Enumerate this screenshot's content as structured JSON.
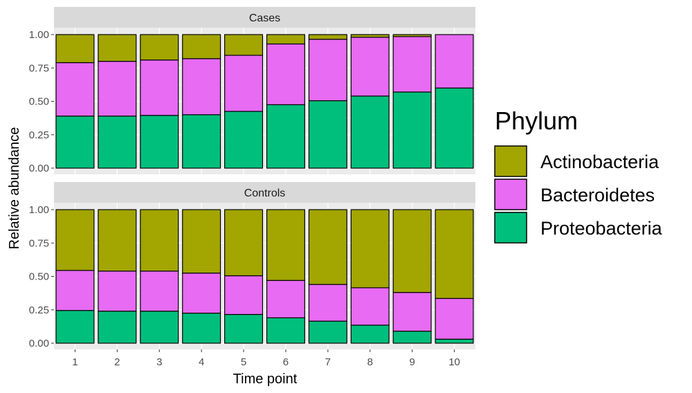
{
  "chart_data": {
    "type": "bar",
    "stacked": true,
    "xlabel": "Time point",
    "ylabel": "Relative abundance",
    "ylim": [
      0,
      1
    ],
    "y_ticks": [
      "0.00",
      "0.25",
      "0.50",
      "0.75",
      "1.00"
    ],
    "y_tick_values": [
      0,
      0.25,
      0.5,
      0.75,
      1.0
    ],
    "categories": [
      "1",
      "2",
      "3",
      "4",
      "5",
      "6",
      "7",
      "8",
      "9",
      "10"
    ],
    "legend": {
      "title": "Phylum",
      "position": "right",
      "entries": [
        "Actinobacteria",
        "Bacteroidetes",
        "Proteobacteria"
      ]
    },
    "colors": {
      "Actinobacteria": "#a3a500",
      "Bacteroidetes": "#e76bf3",
      "Proteobacteria": "#00bf7d",
      "panel_bg": "#ebebeb",
      "strip_bg": "#d9d9d9",
      "grid": "#ffffff"
    },
    "panels": [
      {
        "label": "Cases",
        "series": [
          {
            "name": "Proteobacteria",
            "values": [
              0.39,
              0.39,
              0.395,
              0.4,
              0.425,
              0.475,
              0.505,
              0.54,
              0.57,
              0.6
            ]
          },
          {
            "name": "Bacteroidetes",
            "values": [
              0.4,
              0.41,
              0.415,
              0.42,
              0.42,
              0.455,
              0.46,
              0.44,
              0.415,
              0.4
            ]
          },
          {
            "name": "Actinobacteria",
            "values": [
              0.21,
              0.2,
              0.19,
              0.18,
              0.155,
              0.07,
              0.035,
              0.02,
              0.015,
              0.0
            ]
          }
        ]
      },
      {
        "label": "Controls",
        "series": [
          {
            "name": "Proteobacteria",
            "values": [
              0.245,
              0.24,
              0.24,
              0.225,
              0.215,
              0.19,
              0.165,
              0.135,
              0.09,
              0.03
            ]
          },
          {
            "name": "Bacteroidetes",
            "values": [
              0.3,
              0.3,
              0.3,
              0.3,
              0.29,
              0.28,
              0.275,
              0.28,
              0.29,
              0.305
            ]
          },
          {
            "name": "Actinobacteria",
            "values": [
              0.455,
              0.46,
              0.46,
              0.475,
              0.495,
              0.53,
              0.56,
              0.585,
              0.62,
              0.665
            ]
          }
        ]
      }
    ]
  }
}
